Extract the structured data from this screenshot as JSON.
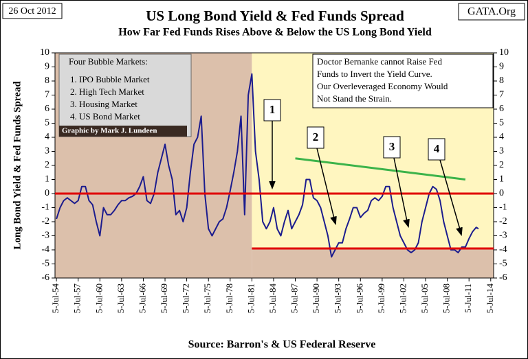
{
  "chart_data": {
    "type": "line",
    "title": "US Long Bond Yield & Fed Funds Spread",
    "subtitle": "How Far Fed Funds Rises Above & Below the US Long Bond Yield",
    "date": "26 Oct 2012",
    "source_site": "GATA.Org",
    "y_label": "Long Bond Yield & Fed Funds Spread",
    "x_label": "Source: Barron's & US Federal Reserve",
    "legend_box": {
      "heading": "Four Bubble Markets:",
      "items": [
        "1. IPO Bubble Market",
        "2. High Tech Market",
        "3. Housing  Market",
        "4. US Bond Market"
      ],
      "credit": "Graphic by Mark J. Lundeen"
    },
    "note": [
      "Doctor Bernanke cannot Raise Fed",
      "Funds to Invert the Yield Curve.",
      "Our Overleveraged Economy Would",
      "Not Stand the Strain."
    ],
    "markers": [
      "1",
      "2",
      "3",
      "4"
    ],
    "xlim": [
      1954.3,
      2014.9
    ],
    "ylim": [
      -6,
      10
    ],
    "xticks": [
      {
        "value": 1954.5,
        "label": "5-Jul-54"
      },
      {
        "value": 1957.5,
        "label": "5-Jul-57"
      },
      {
        "value": 1960.5,
        "label": "5-Jul-60"
      },
      {
        "value": 1963.5,
        "label": "5-Jul-63"
      },
      {
        "value": 1966.5,
        "label": "5-Jul-66"
      },
      {
        "value": 1969.5,
        "label": "5-Jul-69"
      },
      {
        "value": 1972.5,
        "label": "5-Jul-72"
      },
      {
        "value": 1975.5,
        "label": "5-Jul-75"
      },
      {
        "value": 1978.5,
        "label": "5-Jul-78"
      },
      {
        "value": 1981.5,
        "label": "5-Jul-81"
      },
      {
        "value": 1984.5,
        "label": "5-Jul-84"
      },
      {
        "value": 1987.5,
        "label": "5-Jul-87"
      },
      {
        "value": 1990.5,
        "label": "5-Jul-90"
      },
      {
        "value": 1993.5,
        "label": "5-Jul-93"
      },
      {
        "value": 1996.5,
        "label": "5-Jul-96"
      },
      {
        "value": 1999.5,
        "label": "5-Jul-99"
      },
      {
        "value": 2002.5,
        "label": "5-Jul-02"
      },
      {
        "value": 2005.5,
        "label": "5-Jul-05"
      },
      {
        "value": 2008.5,
        "label": "5-Jul-08"
      },
      {
        "value": 2011.5,
        "label": "5-Jul-11"
      },
      {
        "value": 2014.5,
        "label": "5-Jul-14"
      }
    ],
    "yticks": [
      -6,
      -5,
      -4,
      -3,
      -2,
      -1,
      0,
      1,
      2,
      3,
      4,
      5,
      6,
      7,
      8,
      9,
      10
    ],
    "background_regions": [
      {
        "xlim": [
          1954.3,
          1981.5
        ],
        "ylim": [
          -6,
          10
        ],
        "color": "#dcc0ab"
      },
      {
        "xlim": [
          1981.5,
          2014.9
        ],
        "ylim": [
          -3.9,
          10
        ],
        "color": "#fff6c0"
      },
      {
        "xlim": [
          1981.5,
          2014.9
        ],
        "ylim": [
          -6,
          -3.9
        ],
        "color": "#dcc0ab"
      }
    ],
    "hlines": [
      {
        "y": 0,
        "x": [
          1954.3,
          2014.9
        ],
        "color": "#e00000"
      },
      {
        "y": -3.9,
        "x": [
          1981.5,
          2014.9
        ],
        "color": "#e00000"
      }
    ],
    "trend_line": {
      "x": [
        1987.5,
        2011
      ],
      "y": [
        2.5,
        1.0
      ],
      "color": "#3cb34a"
    },
    "series": [
      {
        "name": "Spread",
        "color": "#1c1c8e",
        "x": [
          1954.5,
          1955,
          1955.5,
          1956,
          1956.5,
          1957,
          1957.5,
          1958,
          1958.5,
          1959,
          1959.5,
          1960,
          1960.5,
          1961,
          1961.5,
          1962,
          1962.5,
          1963,
          1963.5,
          1964,
          1964.5,
          1965,
          1965.5,
          1966,
          1966.5,
          1967,
          1967.5,
          1968,
          1968.5,
          1969,
          1969.5,
          1970,
          1970.5,
          1971,
          1971.5,
          1972,
          1972.5,
          1973,
          1973.5,
          1974,
          1974.5,
          1975,
          1975.5,
          1976,
          1976.5,
          1977,
          1977.5,
          1978,
          1978.5,
          1979,
          1979.5,
          1980,
          1980.5,
          1981,
          1981.5,
          1982,
          1982.5,
          1983,
          1983.5,
          1984,
          1984.5,
          1985,
          1985.5,
          1986,
          1986.5,
          1987,
          1987.5,
          1988,
          1988.5,
          1989,
          1989.5,
          1990,
          1990.5,
          1991,
          1991.5,
          1992,
          1992.5,
          1993,
          1993.5,
          1994,
          1994.5,
          1995,
          1995.5,
          1996,
          1996.5,
          1997,
          1997.5,
          1998,
          1998.5,
          1999,
          1999.5,
          2000,
          2000.5,
          2001,
          2001.5,
          2002,
          2002.5,
          2003,
          2003.5,
          2004,
          2004.5,
          2005,
          2005.5,
          2006,
          2006.5,
          2007,
          2007.5,
          2008,
          2008.5,
          2009,
          2009.5,
          2010,
          2010.5,
          2011,
          2011.5,
          2012,
          2012.5,
          2012.8
        ],
        "values": [
          -1.8,
          -1.0,
          -0.5,
          -0.3,
          -0.5,
          -0.7,
          -0.5,
          0.5,
          0.5,
          -0.5,
          -0.8,
          -2.0,
          -3.0,
          -1.0,
          -1.5,
          -1.5,
          -1.2,
          -0.8,
          -0.5,
          -0.5,
          -0.3,
          -0.2,
          0,
          0.5,
          1.2,
          -0.5,
          -0.7,
          0,
          1.5,
          2.5,
          3.5,
          2.0,
          1.0,
          -1.5,
          -1.2,
          -2.0,
          -1.0,
          1.5,
          3.5,
          4.0,
          5.5,
          0,
          -2.5,
          -3.0,
          -2.5,
          -2.0,
          -1.8,
          -1.0,
          0.2,
          1.5,
          3.0,
          5.5,
          -1.5,
          7.0,
          8.5,
          3.0,
          1.0,
          -2.0,
          -2.5,
          -2.0,
          -1.0,
          -2.5,
          -3.0,
          -2.0,
          -1.2,
          -2.5,
          -2.0,
          -1.5,
          -0.8,
          1.0,
          1.0,
          -0.3,
          -0.5,
          -1.0,
          -2.0,
          -3.0,
          -4.5,
          -4.0,
          -3.5,
          -3.5,
          -2.5,
          -1.8,
          -1.0,
          -1.0,
          -1.7,
          -1.4,
          -1.2,
          -0.5,
          -0.3,
          -0.5,
          -0.2,
          0.5,
          0.5,
          -1.0,
          -2.0,
          -3.0,
          -3.5,
          -4.0,
          -4.2,
          -4.0,
          -3.5,
          -2.0,
          -1.0,
          0,
          0.5,
          0.3,
          -0.5,
          -2.0,
          -3.0,
          -4.0,
          -4.0,
          -4.2,
          -3.8,
          -3.8,
          -3.2,
          -2.7,
          -2.4,
          -2.5
        ]
      }
    ]
  }
}
